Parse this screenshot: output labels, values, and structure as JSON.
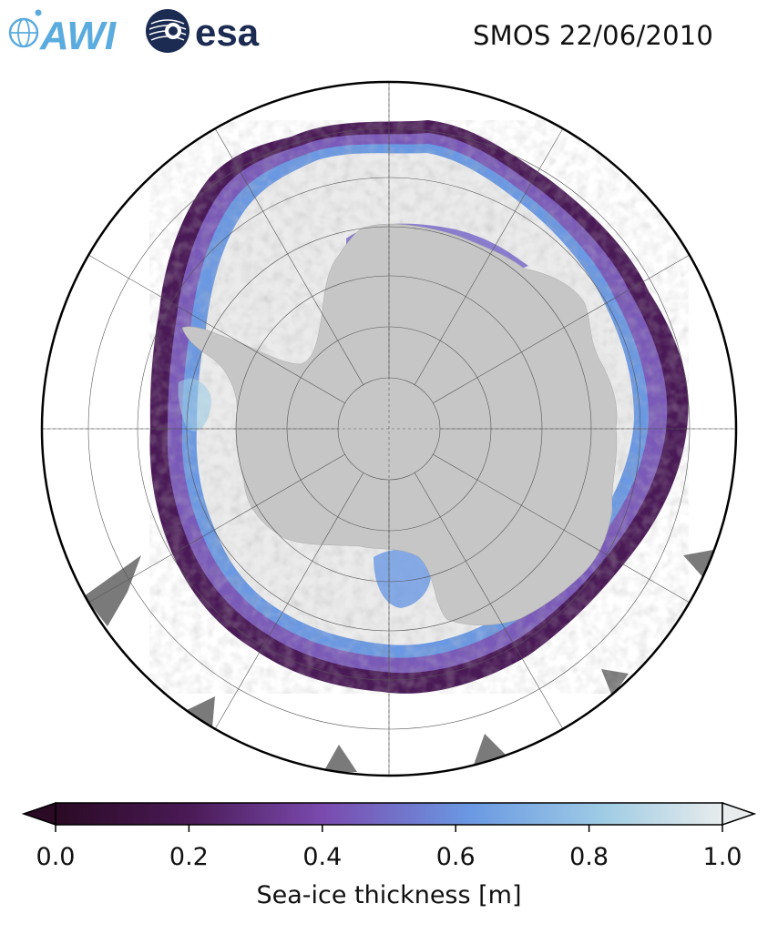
{
  "header": {
    "title": "SMOS 22/06/2010",
    "logos": [
      {
        "name": "AWI",
        "text": "AWI",
        "color": "#5aabde"
      },
      {
        "name": "esa",
        "text": "esa",
        "color": "#1b2b52"
      }
    ]
  },
  "map": {
    "projection": "south-polar-stereographic",
    "colors": {
      "land": "#c6c6c6",
      "thick_ice": "#ebebeb",
      "ocean": "#ffffff",
      "coast_gray": "#7a7a7a",
      "grid": "#555555"
    }
  },
  "colorbar": {
    "label": "Sea-ice thickness [m]",
    "ticks": [
      "0.0",
      "0.2",
      "0.4",
      "0.6",
      "0.8",
      "1.0"
    ],
    "range": [
      0.0,
      1.0
    ],
    "extend": "both",
    "colormap": [
      "#2a0a24",
      "#4a1a56",
      "#7a4aae",
      "#6a98e2",
      "#9ecbe4",
      "#e8ecec"
    ]
  }
}
